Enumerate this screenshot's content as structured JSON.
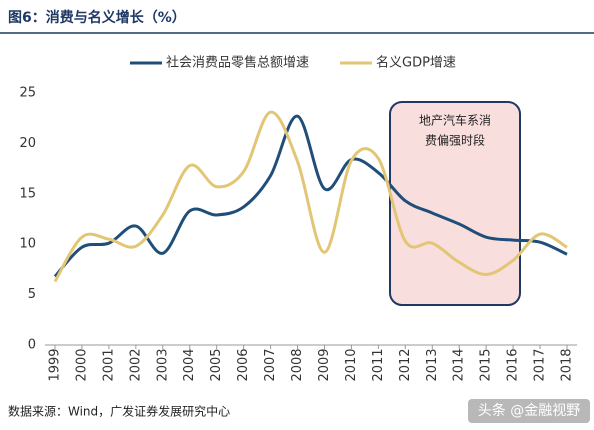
{
  "chart_data": {
    "type": "line",
    "title": "图6：消费与名义增长（%）",
    "categories": [
      "1999",
      "2000",
      "2001",
      "2002",
      "2003",
      "2004",
      "2005",
      "2006",
      "2007",
      "2008",
      "2009",
      "2010",
      "2011",
      "2012",
      "2013",
      "2014",
      "2015",
      "2016",
      "2017",
      "2018"
    ],
    "series": [
      {
        "name": "社会消费品零售总额增速",
        "color": "#1f4e79",
        "values": [
          6.8,
          9.7,
          10.1,
          11.8,
          9.1,
          13.3,
          12.9,
          13.7,
          16.8,
          22.7,
          15.5,
          18.4,
          17.1,
          14.3,
          13.1,
          12.0,
          10.7,
          10.4,
          10.2,
          9.0
        ]
      },
      {
        "name": "名义GDP增速",
        "color": "#e2c675",
        "values": [
          6.3,
          10.7,
          10.5,
          9.8,
          12.9,
          17.8,
          15.7,
          17.2,
          23.1,
          18.2,
          9.2,
          18.3,
          18.5,
          10.3,
          10.1,
          8.2,
          7.0,
          8.4,
          11.0,
          9.7
        ]
      }
    ],
    "ylim": [
      0,
      25
    ],
    "yticks": [
      0,
      5,
      10,
      15,
      20,
      25
    ],
    "annotation": [
      "地产汽车系消",
      "费偏强时段"
    ],
    "source": "数据来源：Wind，广发证券发展研究中心",
    "watermark": "头条 @金融视野"
  }
}
